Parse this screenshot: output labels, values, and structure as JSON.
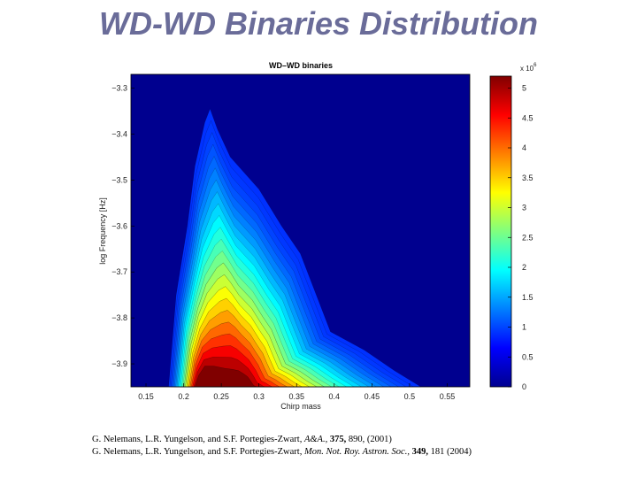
{
  "slide": {
    "title": "WD-WD Binaries Distribution"
  },
  "chart_data": {
    "type": "heatmap",
    "title": "WD–WD binaries",
    "xlabel": "Chirp mass",
    "ylabel": "log Frequency [Hz]",
    "x_ticks": [
      "0.15",
      "0.2",
      "0.25",
      "0.3",
      "0.35",
      "0.4",
      "0.45",
      "0.5",
      "0.55"
    ],
    "y_ticks": [
      "−3.3",
      "−3.4",
      "−3.5",
      "−3.6",
      "−3.7",
      "−3.8",
      "−3.9"
    ],
    "xlim": [
      0.13,
      0.58
    ],
    "ylim": [
      -3.95,
      -3.27
    ],
    "colorbar": {
      "exponent_label": "x 10",
      "exponent": "6",
      "ticks": [
        "0",
        "0.5",
        "1",
        "1.5",
        "2",
        "2.5",
        "3",
        "3.5",
        "4",
        "4.5",
        "5"
      ],
      "range": [
        0,
        5.2
      ],
      "colormap": "jet"
    },
    "background_color": "#00008f",
    "peak": {
      "chirp_mass": 0.26,
      "log_frequency": -3.94,
      "value": 5.0
    }
  },
  "references": [
    {
      "authors": "G. Nelemans, L.R. Yungelson, and S.F. Portegies-Zwart,",
      "journal": "A&A.,",
      "volume": "375,",
      "rest": "890, (2001)"
    },
    {
      "authors": "G. Nelemans, L.R. Yungelson, and S.F. Portegies-Zwart,",
      "journal": "Mon. Not. Roy. Astron. Soc.,",
      "volume": "349,",
      "rest": "181 (2004)"
    }
  ]
}
